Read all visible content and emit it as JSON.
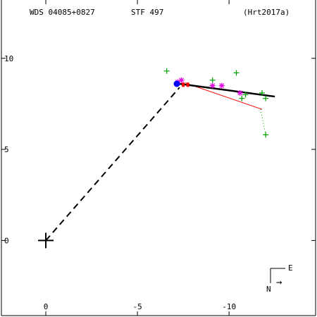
{
  "header": {
    "system": "WDS 04085+0827",
    "discoverer": "STF 497",
    "reference": "(Hrt2017a)"
  },
  "orientation": {
    "east_label": "E",
    "north_label": "N",
    "arrow_glyph": "→"
  },
  "chart_data": {
    "type": "scatter",
    "xlim": [
      2.5,
      -14.8
    ],
    "ylim": [
      -4.2,
      13.2
    ],
    "x_ticks": [
      -10,
      -5,
      0
    ],
    "x_tick_labels": [
      "-10",
      "-5",
      "0"
    ],
    "y_ticks": [
      10,
      5,
      0
    ],
    "y_tick_labels": [
      "10",
      "5",
      "0"
    ],
    "grid": false,
    "primary": {
      "x": 0,
      "y": 0
    },
    "series": [
      {
        "marker": "plus",
        "color": "#00a000",
        "points": [
          [
            -12.0,
            7.8
          ],
          [
            -11.8,
            8.1
          ],
          [
            -10.4,
            9.2
          ],
          [
            -9.1,
            8.8
          ],
          [
            -6.6,
            9.3
          ],
          [
            -10.7,
            7.8
          ],
          [
            -12.0,
            5.8
          ],
          [
            -10.9,
            8.0
          ]
        ]
      },
      {
        "marker": "asterisk",
        "color": "#e000e0",
        "points": [
          [
            -9.6,
            8.5
          ],
          [
            -9.1,
            8.5
          ],
          [
            -10.6,
            8.1
          ],
          [
            -7.4,
            8.8
          ],
          [
            -7.2,
            8.7
          ]
        ]
      },
      {
        "marker": "circle",
        "color": "#0000ff",
        "points": [
          [
            -7.15,
            8.6
          ]
        ]
      },
      {
        "marker": "square",
        "color": "#ff0000",
        "points": [
          [
            -7.5,
            8.55
          ],
          [
            -7.75,
            8.55
          ]
        ]
      }
    ],
    "orbit_fit": {
      "color": "#000000",
      "from": [
        -12.5,
        7.9
      ],
      "to": [
        -7.3,
        8.6
      ]
    },
    "red_fit": {
      "color": "#ff0000",
      "from": [
        -11.8,
        7.2
      ],
      "to": [
        -7.6,
        8.65
      ]
    },
    "connector": {
      "from": [
        0,
        0
      ],
      "to": [
        -7.3,
        8.4
      ]
    },
    "faint_track": {
      "color": "#00a000",
      "from": [
        -12.0,
        5.8
      ],
      "to": [
        -11.7,
        7.3
      ]
    }
  }
}
